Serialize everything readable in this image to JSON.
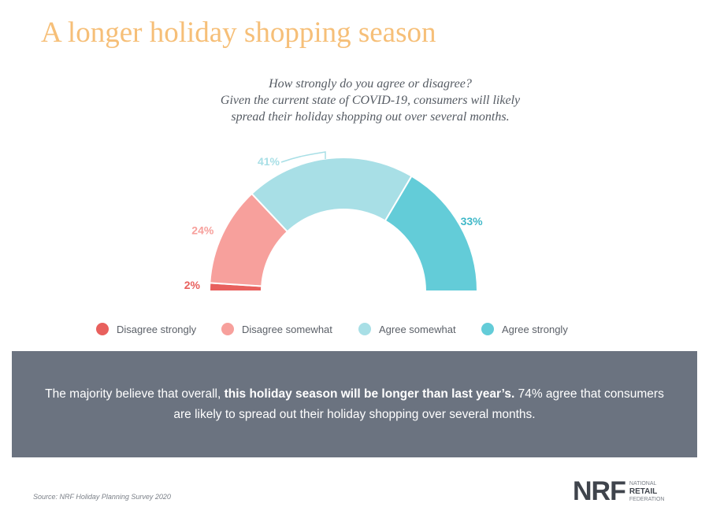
{
  "title": "A longer holiday shopping season",
  "question_lines": [
    "How strongly do you agree or disagree?",
    "Given the current state of COVID-19, consumers will likely",
    "spread their holiday shopping out over several months."
  ],
  "chart_data": {
    "type": "pie",
    "subtype": "semi-donut",
    "categories": [
      "Disagree strongly",
      "Disagree somewhat",
      "Agree somewhat",
      "Agree strongly"
    ],
    "values": [
      2,
      24,
      41,
      33
    ],
    "labels": [
      "2%",
      "24%",
      "41%",
      "33%"
    ],
    "colors": [
      "#e8605d",
      "#f7a09c",
      "#a8dfe6",
      "#63ccd8"
    ],
    "label_colors": [
      "#e8605d",
      "#f7a09c",
      "#a8dfe6",
      "#3fb8c8"
    ],
    "legend_position": "bottom"
  },
  "banner": {
    "text_before": "The majority believe that overall, ",
    "text_bold": "this holiday season will be longer than last year’s.",
    "text_after": " 74% agree that consumers are likely to spread out their holiday shopping over several months."
  },
  "source": "Source: NRF Holiday Planning Survey 2020",
  "logo": {
    "mark": "NRF",
    "line1": "National",
    "line2": "Retail",
    "line3": "Federation"
  }
}
